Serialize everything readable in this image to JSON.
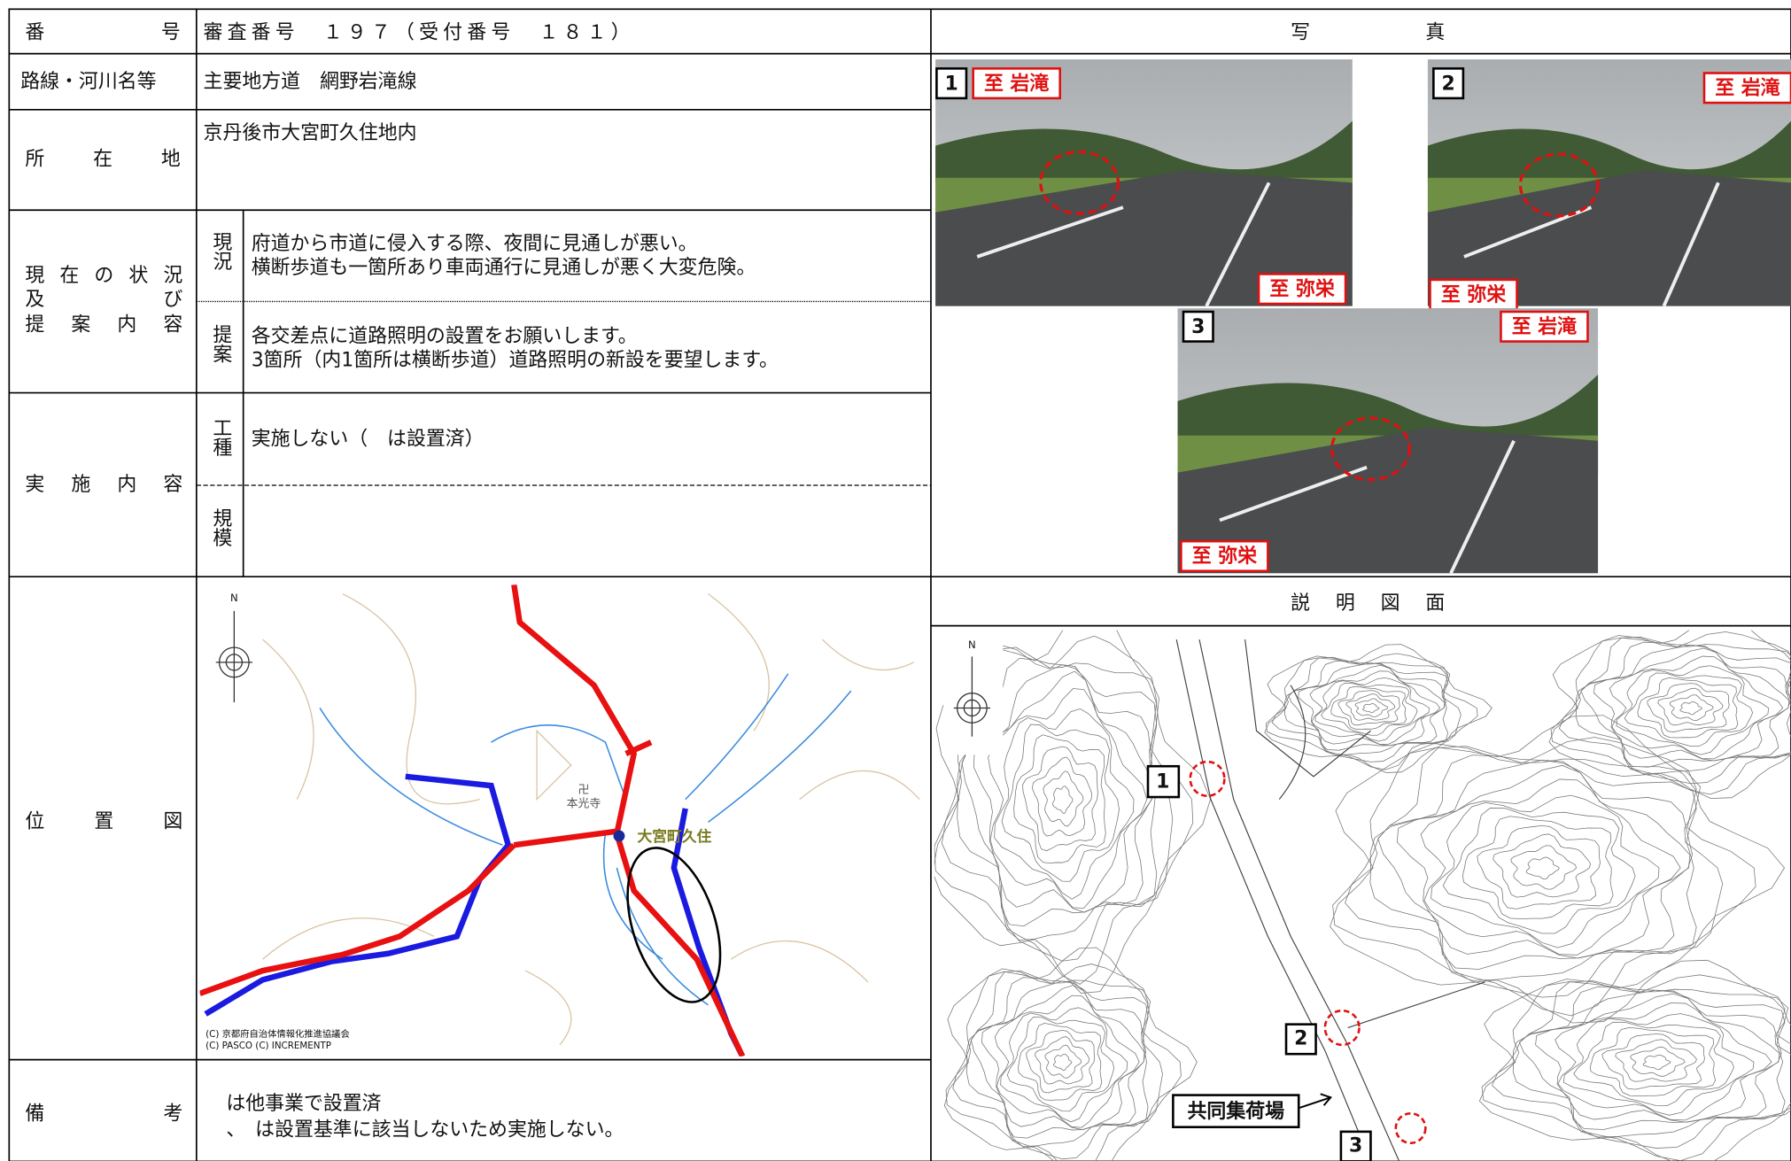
{
  "table": {
    "number": {
      "label": "番号",
      "value": "審査番号　１９７（受付番号　１８１）"
    },
    "route": {
      "label": "路線・河川名等",
      "value": "主要地方道　網野岩滝線"
    },
    "location": {
      "label": "所在地",
      "value": "京丹後市大宮町久住地内"
    },
    "situation": {
      "label": [
        "現在の状況",
        "及び",
        "提案内容"
      ],
      "current": {
        "label": "現況",
        "lines": [
          "府道から市道に侵入する際、夜間に見通しが悪い。",
          "横断歩道も一箇所あり車両通行に見通しが悪く大変危険。"
        ]
      },
      "proposal": {
        "label": "提案",
        "lines": [
          "各交差点に道路照明の設置をお願いします。",
          "3箇所（内1箇所は横断歩道）道路照明の新設を要望します。"
        ]
      }
    },
    "implementation": {
      "label": "実施内容",
      "work_type": {
        "label": "工種",
        "value": "実施しない（　は設置済）"
      },
      "scale": {
        "label": "規模"
      }
    },
    "position_map": {
      "label": "位置図",
      "north": "N",
      "temple_symbol": "卍",
      "temple": "本光寺",
      "place": "大宮町久住",
      "copyright": [
        "(C) 京都府自治体情報化推進協議会",
        "(C) PASCO (C) INCREMENTP"
      ]
    },
    "remarks": {
      "label": "備考",
      "lines": [
        "は他事業で設置済",
        "、　は設置基準に該当しないため実施しない。"
      ]
    }
  },
  "photos": {
    "title": "写真",
    "items": [
      {
        "number": "1",
        "to_north": "至 岩滝",
        "to_south": "至 弥栄"
      },
      {
        "number": "2",
        "to_north": "至 岩滝",
        "to_south": "至 弥栄"
      },
      {
        "number": "3",
        "to_north": "至 岩滝",
        "to_south": "至 弥栄"
      }
    ]
  },
  "explanation": {
    "title": "説明図面",
    "north": "N",
    "markers": [
      "1",
      "2",
      "3"
    ],
    "facility": "共同集荷場"
  }
}
